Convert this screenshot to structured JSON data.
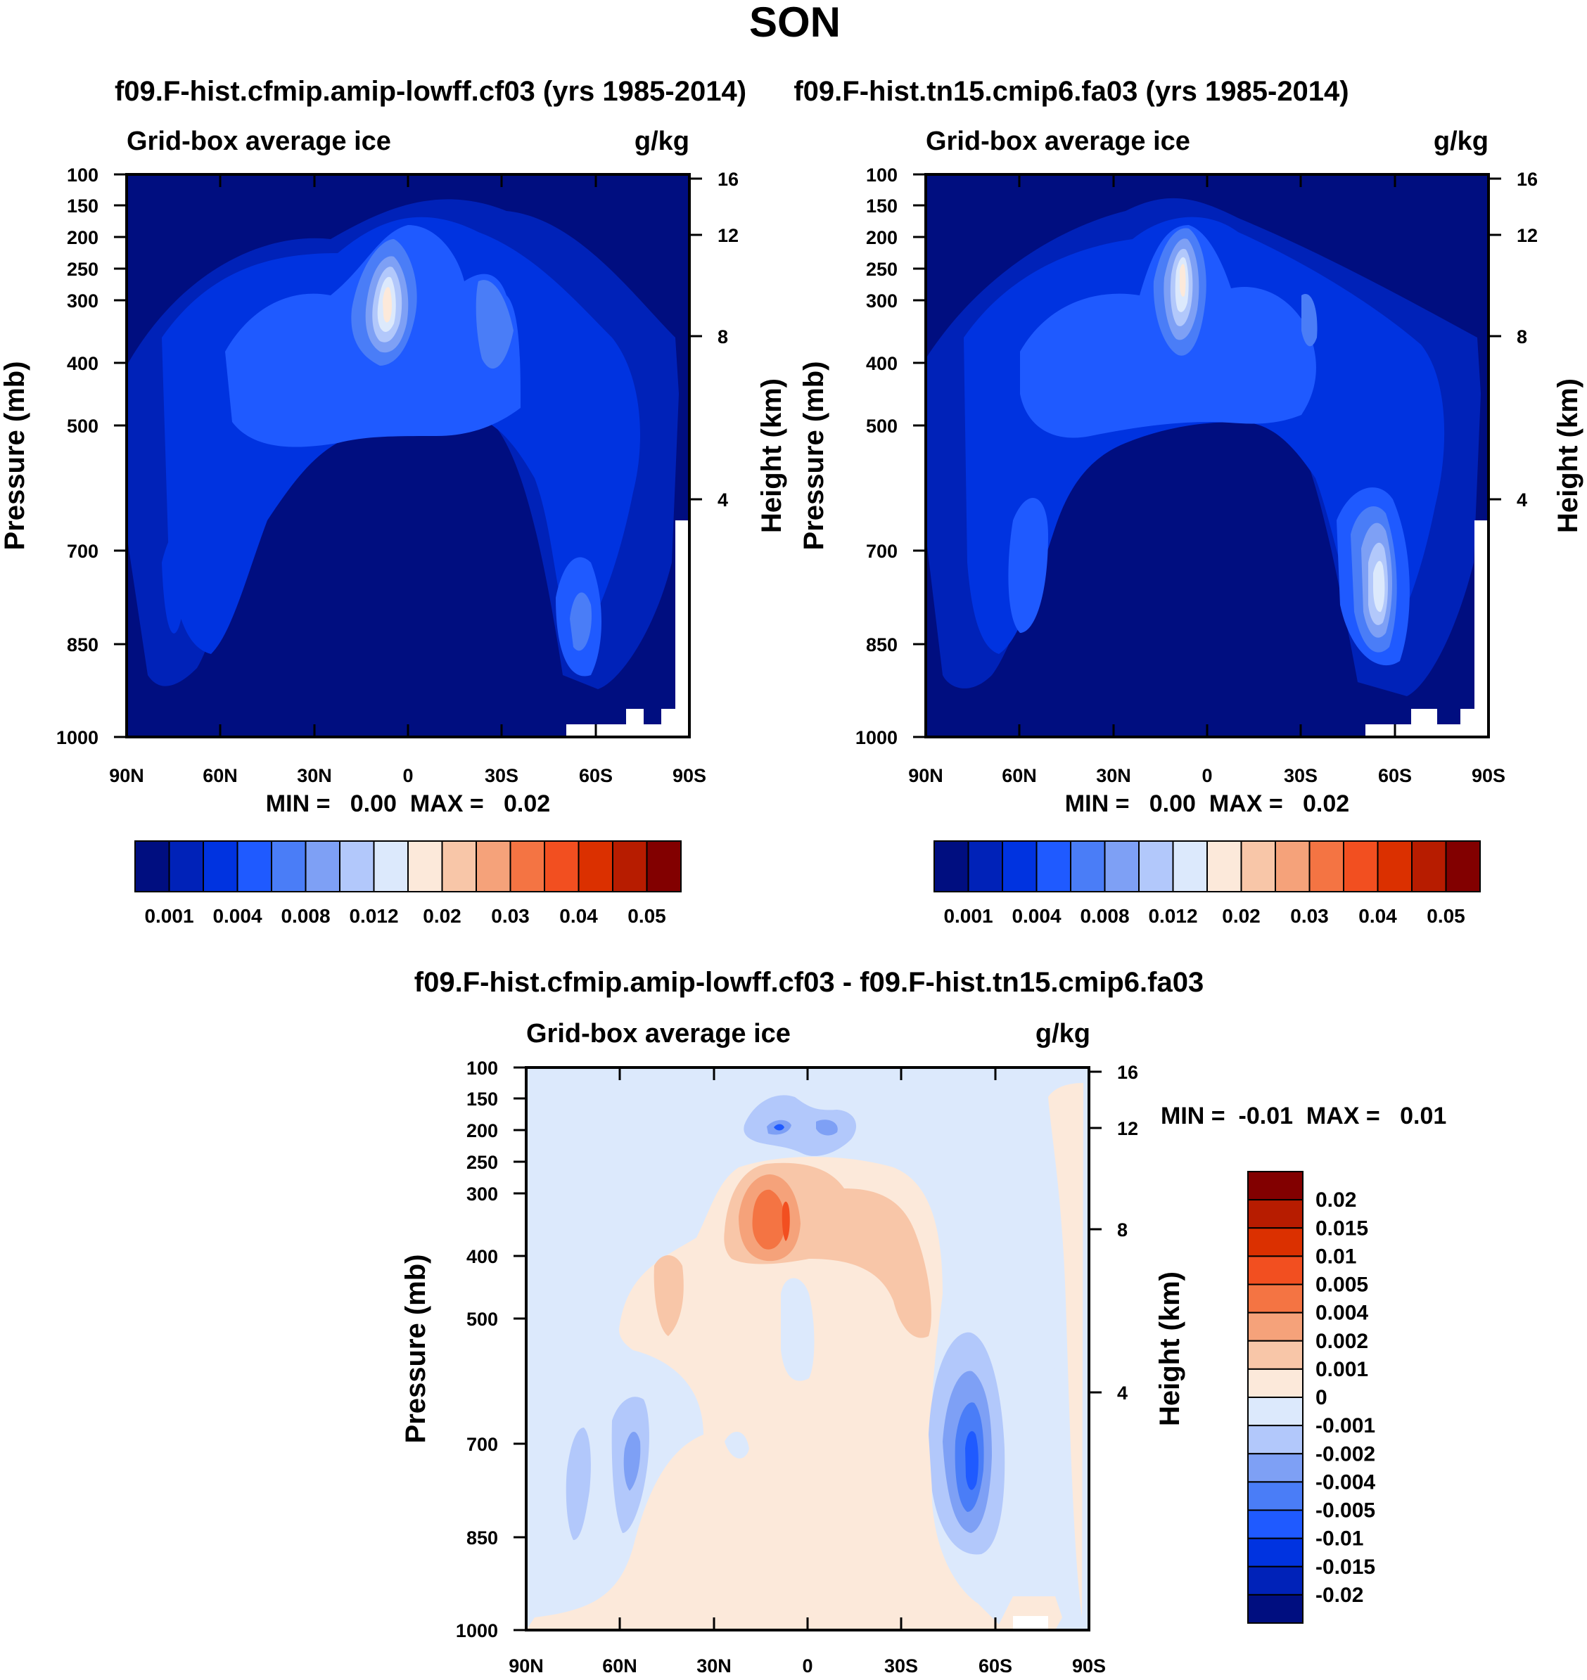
{
  "page_title": "SON",
  "colors": {
    "top_palette": [
      "#000e80",
      "#0022b8",
      "#0033e0",
      "#1f5aff",
      "#4a7df7",
      "#7ea0f5",
      "#b2c8fb",
      "#dce9fc",
      "#fce9da",
      "#f8c6a8",
      "#f5a27a",
      "#f47443",
      "#f24f20",
      "#db3000",
      "#b71c00",
      "#820000"
    ],
    "diff_palette": [
      "#000e80",
      "#0022b8",
      "#0033e0",
      "#1f5aff",
      "#4a7df7",
      "#7ea0f5",
      "#b2c8fb",
      "#dce9fc",
      "#fce9da",
      "#f8c6a8",
      "#f5a27a",
      "#f47443",
      "#f24f20",
      "#db3000",
      "#b71c00",
      "#820000"
    ]
  },
  "chart_data": [
    {
      "type": "contour",
      "title": "f09.F-hist.cfmip.amip-lowff.cf03 (yrs 1985-2014)",
      "left_label": "Grid-box average ice",
      "right_label": "g/kg",
      "ylabel": "Pressure (mb)",
      "y2label": "Height (km)",
      "x_ticks": [
        "90N",
        "60N",
        "30N",
        "0",
        "30S",
        "60S",
        "90S"
      ],
      "y_ticks": [
        100,
        150,
        200,
        250,
        300,
        400,
        500,
        700,
        850,
        1000
      ],
      "y2_ticks": [
        16,
        12,
        8,
        4
      ],
      "ylim": [
        1000,
        100
      ],
      "min_max": "MIN =   0.00  MAX =   0.02",
      "colorbar_labels": [
        "0.001",
        "0.004",
        "0.008",
        "0.012",
        "0.02",
        "0.03",
        "0.04",
        "0.05"
      ]
    },
    {
      "type": "contour",
      "title": "f09.F-hist.tn15.cmip6.fa03 (yrs 1985-2014)",
      "left_label": "Grid-box average ice",
      "right_label": "g/kg",
      "ylabel": "Pressure (mb)",
      "y2label": "Height (km)",
      "x_ticks": [
        "90N",
        "60N",
        "30N",
        "0",
        "30S",
        "60S",
        "90S"
      ],
      "y_ticks": [
        100,
        150,
        200,
        250,
        300,
        400,
        500,
        700,
        850,
        1000
      ],
      "y2_ticks": [
        16,
        12,
        8,
        4
      ],
      "ylim": [
        1000,
        100
      ],
      "min_max": "MIN =   0.00  MAX =   0.02",
      "colorbar_labels": [
        "0.001",
        "0.004",
        "0.008",
        "0.012",
        "0.02",
        "0.03",
        "0.04",
        "0.05"
      ]
    },
    {
      "type": "contour",
      "title": "f09.F-hist.cfmip.amip-lowff.cf03 - f09.F-hist.tn15.cmip6.fa03",
      "left_label": "Grid-box average ice",
      "right_label": "g/kg",
      "ylabel": "Pressure (mb)",
      "y2label": "Height (km)",
      "x_ticks": [
        "90N",
        "60N",
        "30N",
        "0",
        "30S",
        "60S",
        "90S"
      ],
      "y_ticks": [
        100,
        150,
        200,
        250,
        300,
        400,
        500,
        700,
        850,
        1000
      ],
      "y2_ticks": [
        16,
        12,
        8,
        4
      ],
      "ylim": [
        1000,
        100
      ],
      "min_max": "MIN =  -0.01  MAX =   0.01",
      "colorbar_labels": [
        "0.02",
        "0.015",
        "0.01",
        "0.005",
        "0.004",
        "0.002",
        "0.001",
        "0",
        "-0.001",
        "-0.002",
        "-0.004",
        "-0.005",
        "-0.01",
        "-0.015",
        "-0.02"
      ]
    }
  ]
}
